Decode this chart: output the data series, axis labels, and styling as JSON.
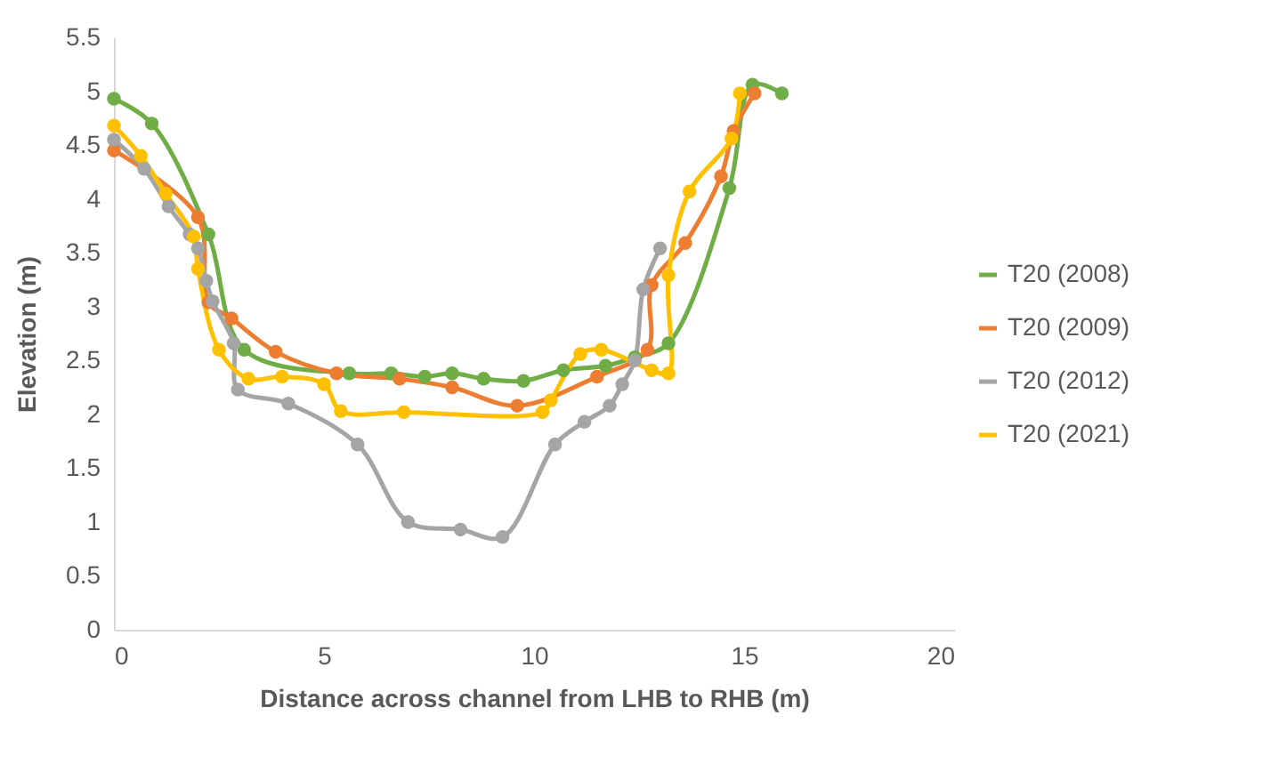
{
  "chart_data": {
    "type": "line",
    "xlabel": "Distance across channel from LHB to RHB (m)",
    "ylabel": "Elevation (m)",
    "xlim": [
      0,
      20
    ],
    "xticks": [
      0,
      5,
      10,
      15,
      20
    ],
    "ylim": [
      0,
      5.5
    ],
    "yticks": [
      0,
      0.5,
      1,
      1.5,
      2,
      2.5,
      3,
      3.5,
      4,
      4.5,
      5,
      5.5
    ],
    "grid": false,
    "legend": "right",
    "marker": "circle",
    "line_style": "solid",
    "series": [
      {
        "name": "T20 (2008)",
        "color": "#70ad47",
        "x": [
          0,
          0.9,
          2.25,
          3.1,
          5.6,
          6.6,
          7.4,
          8.05,
          8.8,
          9.75,
          10.7,
          11.7,
          12.4,
          13.2,
          14.65,
          15.2,
          15.9
        ],
        "values": [
          4.93,
          4.7,
          3.67,
          2.6,
          2.38,
          2.38,
          2.35,
          2.38,
          2.33,
          2.31,
          2.41,
          2.45,
          2.53,
          2.66,
          4.1,
          5.06,
          4.98
        ]
      },
      {
        "name": "T20 (2009)",
        "color": "#ed7d31",
        "x": [
          0,
          2.0,
          2.25,
          2.8,
          3.85,
          5.3,
          6.8,
          8.05,
          9.6,
          11.5,
          12.7,
          12.8,
          13.6,
          14.45,
          14.75,
          15.25
        ],
        "values": [
          4.45,
          3.83,
          3.04,
          2.89,
          2.58,
          2.38,
          2.33,
          2.25,
          2.08,
          2.35,
          2.6,
          3.2,
          3.59,
          4.21,
          4.63,
          4.98
        ]
      },
      {
        "name": "T20 (2012)",
        "color": "#a5a5a5",
        "x": [
          0,
          0.72,
          1.3,
          1.8,
          2.0,
          2.2,
          2.35,
          2.85,
          2.95,
          4.15,
          5.8,
          7.0,
          8.25,
          9.25,
          10.5,
          11.2,
          11.8,
          12.1,
          12.4,
          12.6,
          13.0
        ],
        "values": [
          4.55,
          4.28,
          3.93,
          3.67,
          3.54,
          3.24,
          3.05,
          2.66,
          2.23,
          2.1,
          1.72,
          1.0,
          0.93,
          0.86,
          1.72,
          1.93,
          2.08,
          2.28,
          2.5,
          3.16,
          3.54
        ]
      },
      {
        "name": "T20 (2021)",
        "color": "#ffc000",
        "x": [
          0,
          0.64,
          1.23,
          1.9,
          2.0,
          2.5,
          3.2,
          4.0,
          5.0,
          5.4,
          6.9,
          10.2,
          10.4,
          11.1,
          11.6,
          12.8,
          13.2,
          13.2,
          13.7,
          14.7,
          14.9
        ],
        "values": [
          4.68,
          4.4,
          4.05,
          3.65,
          3.35,
          2.6,
          2.33,
          2.35,
          2.28,
          2.03,
          2.02,
          2.02,
          2.13,
          2.56,
          2.6,
          2.41,
          2.38,
          3.29,
          4.07,
          4.56,
          4.98
        ]
      }
    ]
  }
}
